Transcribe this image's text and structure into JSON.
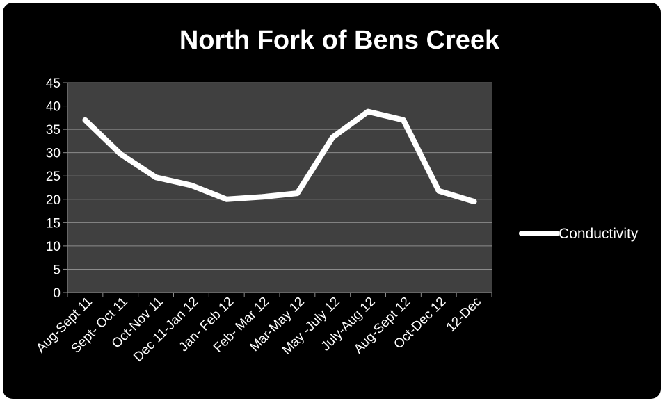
{
  "chart_data": {
    "type": "line",
    "title": "North Fork of Bens Creek",
    "xlabel": "",
    "ylabel": "",
    "categories": [
      "Aug-Sept 11",
      "Sept- Oct 11",
      "Oct-Nov 11",
      "Dec 11-Jan 12",
      "Jan- Feb 12",
      "Feb- Mar 12",
      "Mar-May 12",
      "May -July 12",
      "July-Aug 12",
      "Aug-Sept 12",
      "Oct-Dec 12",
      "12-Dec"
    ],
    "series": [
      {
        "name": "Conductivity",
        "values": [
          37,
          29.7,
          24.7,
          23,
          20,
          20.5,
          21.3,
          33.3,
          38.8,
          37,
          21.8,
          19.5
        ],
        "color": "#ffffff"
      }
    ],
    "ylim": [
      0,
      45
    ],
    "yticks": [
      "0",
      "5",
      "10",
      "15",
      "20",
      "25",
      "30",
      "35",
      "40",
      "45"
    ],
    "grid": true,
    "legend_position": "right",
    "colors": {
      "background": "#000000",
      "plot_area": "#404040",
      "gridline": "#8c8c8c",
      "line": "#ffffff"
    }
  }
}
